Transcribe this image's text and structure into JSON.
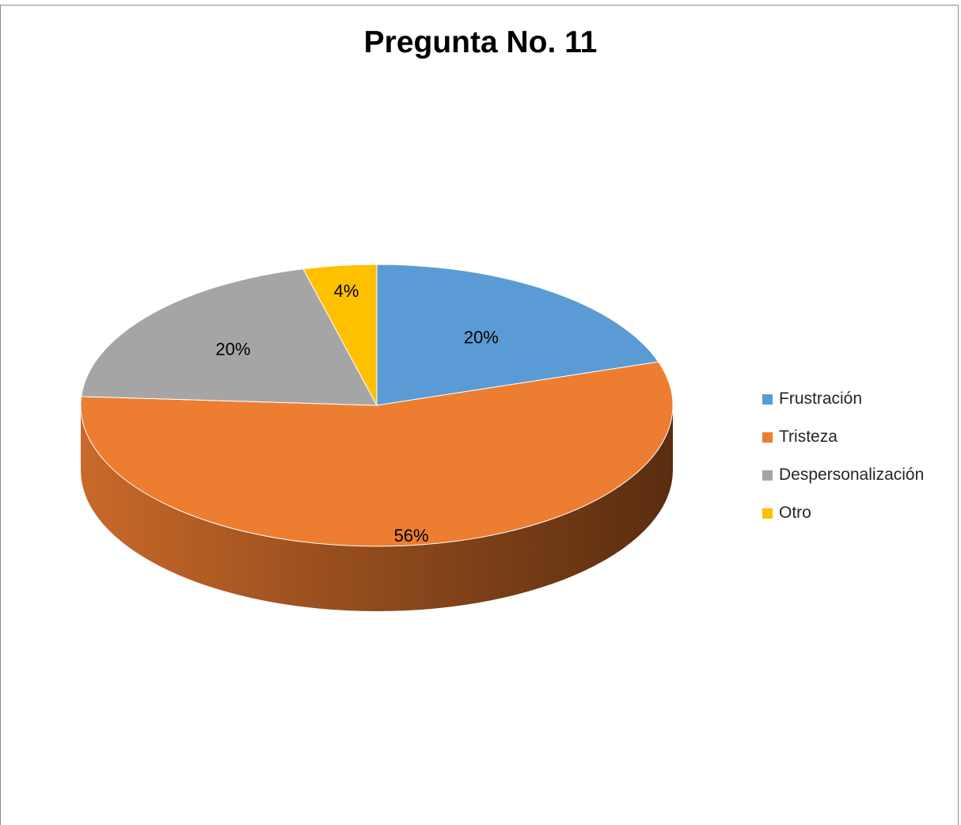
{
  "chart_data": {
    "type": "pie",
    "title": "Pregunta No. 11",
    "categories": [
      "Frustración",
      "Tristeza",
      "Despersonalización",
      "Otro"
    ],
    "values": [
      20,
      56,
      20,
      4
    ],
    "labels": [
      "20%",
      "56%",
      "20%",
      "4%"
    ],
    "colors": [
      "#5b9bd5",
      "#ed7d31",
      "#a5a5a5",
      "#ffc000"
    ],
    "legend_position": "right",
    "style": "3d"
  }
}
